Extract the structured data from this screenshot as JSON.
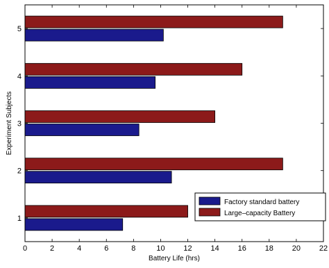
{
  "chart_data": {
    "type": "bar",
    "orientation": "horizontal",
    "title": "",
    "xlabel": "Battery Life (hrs)",
    "ylabel": "Experiment Subjects",
    "categories": [
      "1",
      "2",
      "3",
      "4",
      "5"
    ],
    "xlim": [
      0,
      22
    ],
    "xticks": [
      "0",
      "2",
      "4",
      "6",
      "8",
      "10",
      "12",
      "14",
      "16",
      "18",
      "20",
      "22"
    ],
    "grid": false,
    "legend_position": "bottom-right",
    "series": [
      {
        "name": "Factory standard battery",
        "color": "#1a1a8c",
        "values": [
          7.2,
          10.8,
          8.4,
          9.6,
          10.2
        ]
      },
      {
        "name": "Large–capacity Battery",
        "color": "#8c1a1a",
        "values": [
          12.0,
          19.0,
          14.0,
          16.0,
          19.0
        ]
      }
    ]
  }
}
